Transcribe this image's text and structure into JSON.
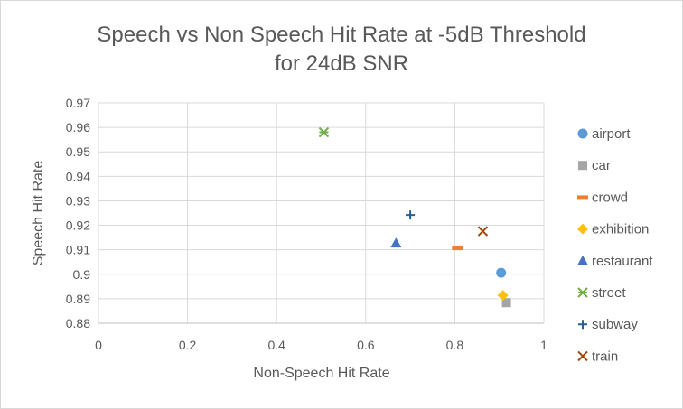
{
  "chart_data": {
    "type": "scatter",
    "title": [
      "Speech vs Non Speech Hit Rate at -5dB Threshold",
      "for 24dB SNR"
    ],
    "xlabel": "Non-Speech Hit Rate",
    "ylabel": "Speech Hit Rate",
    "xlim": [
      0,
      1
    ],
    "ylim": [
      0.88,
      0.97
    ],
    "xticks": [
      "0",
      "0.2",
      "0.4",
      "0.6",
      "0.8",
      "1"
    ],
    "yticks": [
      "0.88",
      "0.89",
      "0.9",
      "0.91",
      "0.92",
      "0.93",
      "0.94",
      "0.95",
      "0.96",
      "0.97"
    ],
    "grid": true,
    "legend_position": "right",
    "series": [
      {
        "name": "airport",
        "marker": "circle",
        "color": "#5B9BD5",
        "x": 0.904,
        "y": 0.9006
      },
      {
        "name": "car",
        "marker": "square",
        "color": "#A5A5A5",
        "x": 0.916,
        "y": 0.8884
      },
      {
        "name": "crowd",
        "marker": "dash",
        "color": "#ED7D31",
        "x": 0.806,
        "y": 0.9106
      },
      {
        "name": "exhibition",
        "marker": "diamond",
        "color": "#FFC000",
        "x": 0.908,
        "y": 0.8914
      },
      {
        "name": "restaurant",
        "marker": "triangle",
        "color": "#4472C4",
        "x": 0.668,
        "y": 0.9128
      },
      {
        "name": "street",
        "marker": "star",
        "color": "#70AD47",
        "x": 0.506,
        "y": 0.958
      },
      {
        "name": "subway",
        "marker": "plus",
        "color": "#255E91",
        "x": 0.7,
        "y": 0.9242
      },
      {
        "name": "train",
        "marker": "x",
        "color": "#9E480E",
        "x": 0.863,
        "y": 0.9176
      }
    ]
  }
}
